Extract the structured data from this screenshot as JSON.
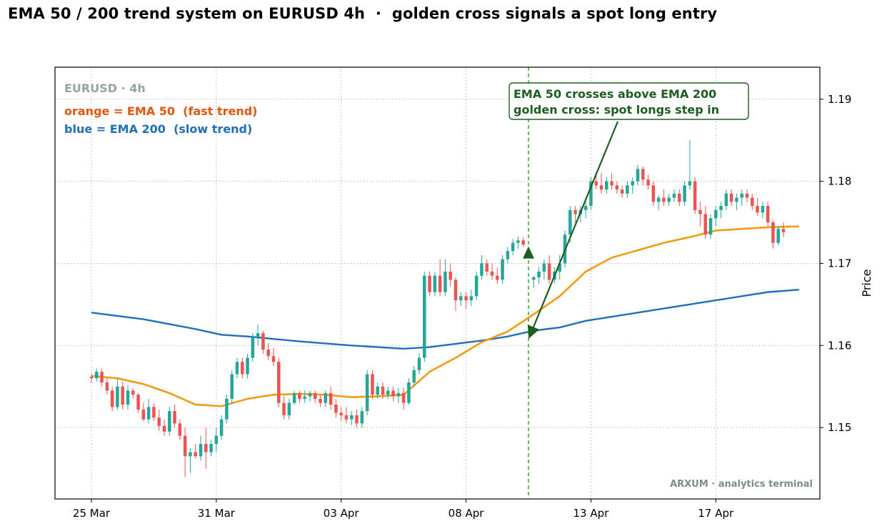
{
  "title": "EMA 50 / 200 trend system on EURUSD 4h  ·  golden cross signals a spot long entry",
  "info": {
    "symbol": "EURUSD · 4h",
    "ema50_legend": "orange = EMA 50  (fast trend)",
    "ema200_legend": "blue = EMA 200  (slow trend)"
  },
  "annotation": {
    "line1": "EMA 50 crosses above EMA 200",
    "line2": "golden cross: spot longs step in"
  },
  "watermark": "ARXUM · analytics terminal",
  "colors": {
    "up": "#26a69a",
    "down": "#ef5350",
    "ema50": "#f39c12",
    "ema200": "#1f6fbf",
    "signal": "#1b5e20",
    "grid": "#b0b0b0",
    "symbol_text": "#95a5a6",
    "ema50_text": "#e6550d",
    "ema200_text": "#1f6fbf",
    "watermark_text": "#7f8c8d"
  },
  "chart_data": {
    "type": "candlestick",
    "title": "EMA 50 / 200 trend system on EURUSD 4h  ·  golden cross signals a spot long entry",
    "ylabel": "Price",
    "xlabel": "",
    "ylim": [
      1.1413,
      1.1939
    ],
    "xlim": [
      -7,
      140
    ],
    "grid": true,
    "x_ticks": [
      {
        "index": 0,
        "label": "25 Mar"
      },
      {
        "index": 24,
        "label": "31 Mar"
      },
      {
        "index": 48,
        "label": "03 Apr"
      },
      {
        "index": 72,
        "label": "08 Apr"
      },
      {
        "index": 96,
        "label": "13 Apr"
      },
      {
        "index": 120,
        "label": "17 Apr"
      },
      {
        "index": 144,
        "label": ""
      }
    ],
    "y_ticks": [
      1.15,
      1.16,
      1.17,
      1.18,
      1.19
    ],
    "y_tick_labels": [
      "1.15",
      "1.16",
      "1.17",
      "1.18",
      "1.19"
    ],
    "candles": [
      [
        1.1562,
        1.1565,
        1.1555,
        1.156
      ],
      [
        1.156,
        1.1572,
        1.1556,
        1.1568
      ],
      [
        1.1568,
        1.1572,
        1.155,
        1.1555
      ],
      [
        1.1555,
        1.156,
        1.154,
        1.1545
      ],
      [
        1.1545,
        1.155,
        1.152,
        1.1525
      ],
      [
        1.1525,
        1.156,
        1.1522,
        1.155
      ],
      [
        1.155,
        1.1556,
        1.1522,
        1.1528
      ],
      [
        1.1528,
        1.1552,
        1.1522,
        1.1545
      ],
      [
        1.1545,
        1.1548,
        1.1535,
        1.154
      ],
      [
        1.154,
        1.1542,
        1.1518,
        1.1522
      ],
      [
        1.1522,
        1.153,
        1.1508,
        1.151
      ],
      [
        1.151,
        1.1535,
        1.1505,
        1.1525
      ],
      [
        1.1525,
        1.153,
        1.1508,
        1.1512
      ],
      [
        1.1512,
        1.1522,
        1.1496,
        1.1502
      ],
      [
        1.1502,
        1.151,
        1.149,
        1.1495
      ],
      [
        1.1495,
        1.1525,
        1.149,
        1.152
      ],
      [
        1.152,
        1.1528,
        1.15,
        1.1505
      ],
      [
        1.1505,
        1.151,
        1.1485,
        1.149
      ],
      [
        1.149,
        1.15,
        1.144,
        1.1465
      ],
      [
        1.1465,
        1.1475,
        1.1445,
        1.147
      ],
      [
        1.147,
        1.148,
        1.1462,
        1.1465
      ],
      [
        1.1465,
        1.149,
        1.146,
        1.148
      ],
      [
        1.148,
        1.15,
        1.145,
        1.147
      ],
      [
        1.147,
        1.1485,
        1.1465,
        1.148
      ],
      [
        1.148,
        1.15,
        1.147,
        1.149
      ],
      [
        1.149,
        1.1515,
        1.1485,
        1.151
      ],
      [
        1.151,
        1.154,
        1.1505,
        1.1535
      ],
      [
        1.1535,
        1.157,
        1.153,
        1.1565
      ],
      [
        1.1565,
        1.1585,
        1.156,
        1.158
      ],
      [
        1.158,
        1.1585,
        1.156,
        1.1565
      ],
      [
        1.1565,
        1.159,
        1.156,
        1.1585
      ],
      [
        1.1585,
        1.1615,
        1.158,
        1.161
      ],
      [
        1.161,
        1.1625,
        1.16,
        1.1615
      ],
      [
        1.1615,
        1.1618,
        1.159,
        1.1595
      ],
      [
        1.1595,
        1.1603,
        1.1582,
        1.1587
      ],
      [
        1.1587,
        1.1597,
        1.1575,
        1.158
      ],
      [
        1.158,
        1.1585,
        1.1525,
        1.153
      ],
      [
        1.153,
        1.1538,
        1.151,
        1.1515
      ],
      [
        1.1515,
        1.1535,
        1.151,
        1.153
      ],
      [
        1.153,
        1.1545,
        1.1528,
        1.1542
      ],
      [
        1.1542,
        1.1545,
        1.153,
        1.1535
      ],
      [
        1.1535,
        1.1545,
        1.153,
        1.1538
      ],
      [
        1.1538,
        1.1545,
        1.1532,
        1.1542
      ],
      [
        1.1542,
        1.1545,
        1.153,
        1.1535
      ],
      [
        1.1535,
        1.154,
        1.1525,
        1.153
      ],
      [
        1.153,
        1.1545,
        1.1525,
        1.1542
      ],
      [
        1.1542,
        1.155,
        1.1522,
        1.1528
      ],
      [
        1.1528,
        1.1535,
        1.1512,
        1.1518
      ],
      [
        1.1518,
        1.1525,
        1.1508,
        1.1515
      ],
      [
        1.1515,
        1.1525,
        1.1505,
        1.151
      ],
      [
        1.151,
        1.152,
        1.1503,
        1.1515
      ],
      [
        1.1515,
        1.1522,
        1.15,
        1.1505
      ],
      [
        1.1505,
        1.1525,
        1.15,
        1.152
      ],
      [
        1.152,
        1.157,
        1.1515,
        1.1565
      ],
      [
        1.1565,
        1.157,
        1.1535,
        1.154
      ],
      [
        1.154,
        1.1555,
        1.1535,
        1.155
      ],
      [
        1.155,
        1.1555,
        1.1535,
        1.154
      ],
      [
        1.154,
        1.155,
        1.1535,
        1.1545
      ],
      [
        1.1545,
        1.155,
        1.1532,
        1.1538
      ],
      [
        1.1538,
        1.1548,
        1.153,
        1.1542
      ],
      [
        1.1542,
        1.1548,
        1.1522,
        1.153
      ],
      [
        1.153,
        1.156,
        1.1528,
        1.1555
      ],
      [
        1.1555,
        1.1575,
        1.155,
        1.157
      ],
      [
        1.157,
        1.159,
        1.1565,
        1.1585
      ],
      [
        1.1585,
        1.169,
        1.158,
        1.1685
      ],
      [
        1.1685,
        1.169,
        1.166,
        1.1665
      ],
      [
        1.1665,
        1.169,
        1.166,
        1.1685
      ],
      [
        1.1685,
        1.1705,
        1.166,
        1.1665
      ],
      [
        1.1665,
        1.1705,
        1.166,
        1.169
      ],
      [
        1.169,
        1.17,
        1.1672,
        1.168
      ],
      [
        1.168,
        1.1683,
        1.1642,
        1.1655
      ],
      [
        1.1655,
        1.1665,
        1.1648,
        1.166
      ],
      [
        1.166,
        1.1665,
        1.1645,
        1.1655
      ],
      [
        1.1655,
        1.1668,
        1.1648,
        1.166
      ],
      [
        1.166,
        1.169,
        1.1655,
        1.1685
      ],
      [
        1.1685,
        1.171,
        1.168,
        1.17
      ],
      [
        1.17,
        1.1705,
        1.1685,
        1.169
      ],
      [
        1.169,
        1.17,
        1.168,
        1.1685
      ],
      [
        1.1685,
        1.1695,
        1.1675,
        1.168
      ],
      [
        1.168,
        1.171,
        1.1675,
        1.1705
      ],
      [
        1.1705,
        1.172,
        1.17,
        1.1715
      ],
      [
        1.1715,
        1.173,
        1.171,
        1.1725
      ],
      [
        1.1725,
        1.1733,
        1.1718,
        1.1728
      ],
      [
        1.1728,
        1.1732,
        1.172,
        1.1723
      ],
      [
        1.168,
        1.1685,
        1.167,
        1.1683
      ],
      [
        1.1683,
        1.1695,
        1.1675,
        1.169
      ],
      [
        1.169,
        1.1705,
        1.168,
        1.17
      ],
      [
        1.17,
        1.171,
        1.1675,
        1.168
      ],
      [
        1.168,
        1.1695,
        1.1675,
        1.169
      ],
      [
        1.169,
        1.171,
        1.168,
        1.17
      ],
      [
        1.17,
        1.174,
        1.1695,
        1.1735
      ],
      [
        1.1735,
        1.177,
        1.1725,
        1.1765
      ],
      [
        1.1765,
        1.177,
        1.175,
        1.176
      ],
      [
        1.176,
        1.177,
        1.175,
        1.1765
      ],
      [
        1.1765,
        1.1775,
        1.1755,
        1.177
      ],
      [
        1.177,
        1.1805,
        1.1765,
        1.18
      ],
      [
        1.18,
        1.181,
        1.179,
        1.1795
      ],
      [
        1.1795,
        1.181,
        1.1785,
        1.179
      ],
      [
        1.179,
        1.1805,
        1.1785,
        1.18
      ],
      [
        1.18,
        1.181,
        1.179,
        1.1795
      ],
      [
        1.1795,
        1.18,
        1.1785,
        1.179
      ],
      [
        1.179,
        1.1795,
        1.178,
        1.1785
      ],
      [
        1.1785,
        1.18,
        1.178,
        1.1795
      ],
      [
        1.1795,
        1.1805,
        1.1785,
        1.18
      ],
      [
        1.18,
        1.182,
        1.1795,
        1.1815
      ],
      [
        1.1815,
        1.1818,
        1.1795,
        1.1802
      ],
      [
        1.1802,
        1.1808,
        1.179,
        1.1795
      ],
      [
        1.1795,
        1.18,
        1.177,
        1.1775
      ],
      [
        1.1775,
        1.1783,
        1.1765,
        1.178
      ],
      [
        1.178,
        1.179,
        1.177,
        1.1775
      ],
      [
        1.1775,
        1.1785,
        1.177,
        1.178
      ],
      [
        1.178,
        1.179,
        1.1775,
        1.1785
      ],
      [
        1.1785,
        1.179,
        1.177,
        1.1775
      ],
      [
        1.1775,
        1.18,
        1.177,
        1.1795
      ],
      [
        1.1795,
        1.185,
        1.179,
        1.18
      ],
      [
        1.18,
        1.1805,
        1.176,
        1.1765
      ],
      [
        1.1765,
        1.1775,
        1.1745,
        1.176
      ],
      [
        1.176,
        1.177,
        1.173,
        1.1735
      ],
      [
        1.1735,
        1.176,
        1.173,
        1.1755
      ],
      [
        1.1755,
        1.177,
        1.1745,
        1.1765
      ],
      [
        1.1765,
        1.1775,
        1.1755,
        1.177
      ],
      [
        1.177,
        1.179,
        1.1765,
        1.1785
      ],
      [
        1.1785,
        1.179,
        1.177,
        1.1775
      ],
      [
        1.1775,
        1.1785,
        1.1765,
        1.178
      ],
      [
        1.178,
        1.179,
        1.177,
        1.1785
      ],
      [
        1.1785,
        1.179,
        1.1775,
        1.178
      ],
      [
        1.178,
        1.1785,
        1.1765,
        1.177
      ],
      [
        1.177,
        1.178,
        1.1758,
        1.1762
      ],
      [
        1.1762,
        1.1775,
        1.1755,
        1.177
      ],
      [
        1.177,
        1.1775,
        1.1745,
        1.175
      ],
      [
        1.175,
        1.1753,
        1.1718,
        1.1725
      ],
      [
        1.1725,
        1.1745,
        1.1722,
        1.1742
      ],
      [
        1.1742,
        1.175,
        1.1732,
        1.1738
      ]
    ],
    "candle_x": [
      0,
      1,
      2,
      3,
      4,
      5,
      6,
      7,
      8,
      9,
      10,
      11,
      12,
      13,
      14,
      15,
      16,
      17,
      18,
      19,
      20,
      21,
      22,
      23,
      24,
      25,
      26,
      27,
      28,
      29,
      30,
      31,
      32,
      33,
      34,
      35,
      36,
      37,
      38,
      39,
      40,
      41,
      42,
      43,
      44,
      45,
      46,
      47,
      48,
      49,
      50,
      51,
      52,
      53,
      54,
      55,
      56,
      57,
      58,
      59,
      60,
      61,
      62,
      63,
      64,
      65,
      66,
      67,
      68,
      69,
      70,
      71,
      72,
      73,
      74,
      75,
      76,
      77,
      78,
      79,
      80,
      81,
      82,
      83,
      85,
      86,
      87,
      88,
      89,
      90,
      91,
      92,
      93,
      94,
      95,
      96,
      97,
      98,
      99,
      100,
      101,
      102,
      103,
      104,
      105,
      106,
      107,
      108,
      109,
      110,
      111,
      112,
      113,
      114,
      115,
      116,
      117,
      118,
      119,
      120,
      121,
      122,
      123,
      124,
      125,
      126,
      127,
      128,
      129,
      130,
      131,
      132,
      133,
      134,
      135,
      136
    ],
    "ema50": {
      "x": [
        0,
        5,
        10,
        15,
        20,
        25,
        30,
        35,
        40,
        45,
        50,
        55,
        60,
        65,
        70,
        75,
        80,
        85,
        90,
        95,
        100,
        105,
        110,
        115,
        120,
        125,
        130,
        135,
        136
      ],
      "y": [
        1.1563,
        1.156,
        1.1553,
        1.1542,
        1.1528,
        1.1526,
        1.1535,
        1.154,
        1.1541,
        1.154,
        1.1537,
        1.1538,
        1.154,
        1.1568,
        1.1585,
        1.1604,
        1.1617,
        1.1638,
        1.166,
        1.169,
        1.1707,
        1.1716,
        1.1725,
        1.1732,
        1.174,
        1.1742,
        1.1744,
        1.1745,
        1.1745
      ]
    },
    "ema200": {
      "x": [
        0,
        10,
        20,
        25,
        30,
        40,
        50,
        60,
        65,
        70,
        75,
        80,
        85,
        90,
        95,
        100,
        105,
        110,
        115,
        120,
        125,
        130,
        136
      ],
      "y": [
        1.164,
        1.1632,
        1.162,
        1.1613,
        1.1611,
        1.1605,
        1.16,
        1.1596,
        1.1598,
        1.1602,
        1.1606,
        1.1611,
        1.1618,
        1.1622,
        1.163,
        1.1635,
        1.164,
        1.1645,
        1.165,
        1.1655,
        1.166,
        1.1665,
        1.1668
      ]
    },
    "signal": {
      "x": 84,
      "price": 1.1608,
      "marker_price": 1.1712
    }
  }
}
